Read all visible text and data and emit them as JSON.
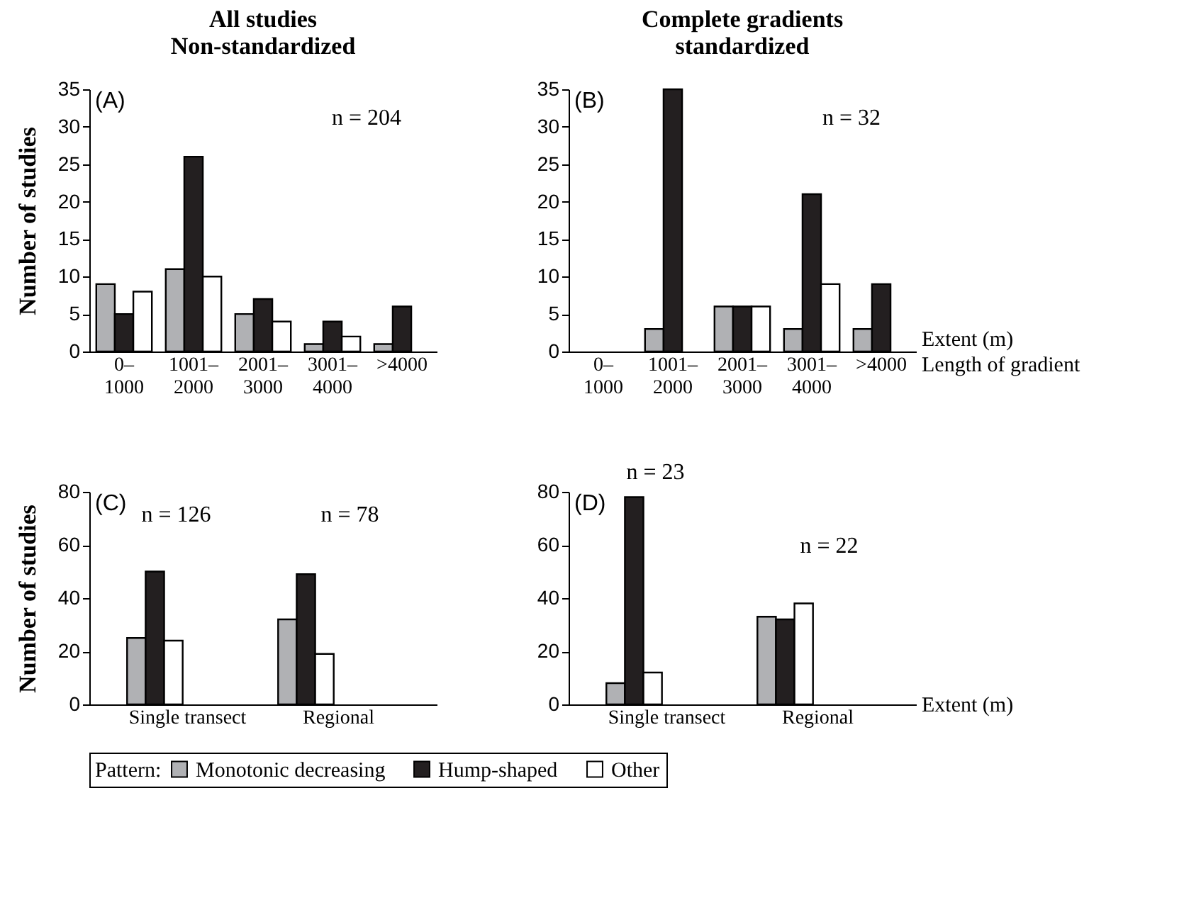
{
  "chart_data": [
    {
      "type": "bar",
      "title": "All studies\nNon-standardized",
      "ylabel": "Number of studies",
      "categories": [
        "0–\n1000",
        "1001–\n2000",
        "2001–\n3000",
        "3001–\n4000",
        ">4000"
      ],
      "ylim": [
        0,
        35
      ],
      "yticks": [
        0,
        5,
        10,
        15,
        20,
        25,
        30,
        35
      ],
      "legend": "bottom",
      "legend_title": "Pattern:",
      "annotations": [
        "(A)",
        "n = 204"
      ],
      "series": [
        {
          "name": "Monotonic decreasing",
          "color": "#b0b1b4",
          "values": [
            9,
            11,
            5,
            1,
            1
          ]
        },
        {
          "name": "Hump-shaped",
          "color": "#231f20",
          "values": [
            5,
            26,
            7,
            4,
            6
          ]
        },
        {
          "name": "Other",
          "color": "#ffffff",
          "values": [
            8,
            10,
            4,
            2,
            null
          ]
        }
      ]
    },
    {
      "type": "bar",
      "title": "Complete gradients\nstandardized",
      "xlabel": "Extent (m)\nLength of gradient",
      "categories": [
        "0–\n1000",
        "1001–\n2000",
        "2001–\n3000",
        "3001–\n4000",
        ">4000"
      ],
      "ylim": [
        0,
        35
      ],
      "yticks": [
        0,
        5,
        10,
        15,
        20,
        25,
        30,
        35
      ],
      "annotations": [
        "(B)",
        "n = 32"
      ],
      "series": [
        {
          "name": "Monotonic decreasing",
          "color": "#b0b1b4",
          "values": [
            null,
            3,
            6,
            3,
            3
          ]
        },
        {
          "name": "Hump-shaped",
          "color": "#231f20",
          "values": [
            null,
            35,
            6,
            21,
            9
          ]
        },
        {
          "name": "Other",
          "color": "#ffffff",
          "values": [
            null,
            null,
            6,
            9,
            null
          ]
        }
      ]
    },
    {
      "type": "bar",
      "ylabel": "Number of studies",
      "categories": [
        "Single transect",
        "Regional"
      ],
      "ylim": [
        0,
        80
      ],
      "yticks": [
        0,
        20,
        40,
        60,
        80
      ],
      "annotations": [
        "(C)",
        "n = 126",
        "n = 78"
      ],
      "series": [
        {
          "name": "Monotonic decreasing",
          "color": "#b0b1b4",
          "values": [
            25,
            32
          ]
        },
        {
          "name": "Hump-shaped",
          "color": "#231f20",
          "values": [
            50,
            49
          ]
        },
        {
          "name": "Other",
          "color": "#ffffff",
          "values": [
            24,
            19
          ]
        }
      ]
    },
    {
      "type": "bar",
      "xlabel": "Extent (m)",
      "categories": [
        "Single transect",
        "Regional"
      ],
      "ylim": [
        0,
        80
      ],
      "yticks": [
        0,
        20,
        40,
        60,
        80
      ],
      "annotations": [
        "(D)",
        "n = 23",
        "n = 22"
      ],
      "series": [
        {
          "name": "Monotonic decreasing",
          "color": "#b0b1b4",
          "values": [
            8,
            33
          ]
        },
        {
          "name": "Hump-shaped",
          "color": "#231f20",
          "values": [
            78,
            32
          ]
        },
        {
          "name": "Other",
          "color": "#ffffff",
          "values": [
            12,
            38
          ]
        }
      ]
    }
  ]
}
